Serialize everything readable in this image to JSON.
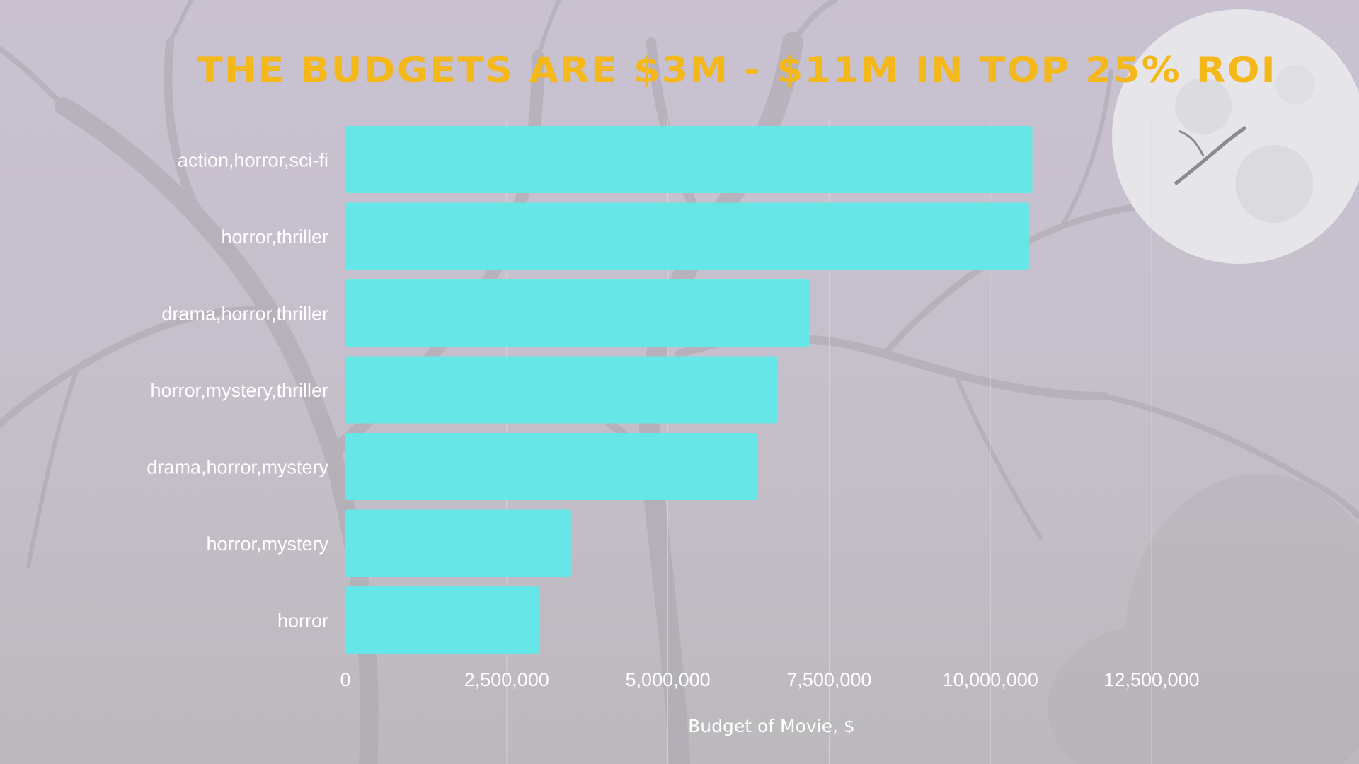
{
  "colors": {
    "bar": "#67e6e8",
    "title": "#f5b81b",
    "text": "#ffffff",
    "grid": "#dcd8e2"
  },
  "chart_data": {
    "type": "bar",
    "orientation": "horizontal",
    "title": "The Budgets are $3M - $11M in Top 25% ROI",
    "xlabel": "Budget of Movie, $",
    "ylabel": "",
    "categories": [
      "action,horror,sci-fi",
      "horror,thriller",
      "drama,horror,thriller",
      "horror,mystery,thriller",
      "drama,horror,mystery",
      "horror,mystery",
      "horror"
    ],
    "values": [
      10650000,
      10600000,
      7200000,
      6700000,
      6380000,
      3500000,
      3000000
    ],
    "xlim": [
      0,
      12500000
    ],
    "xticks": [
      0,
      2500000,
      5000000,
      7500000,
      10000000,
      12500000
    ],
    "xtick_labels": [
      "0",
      "2,500,000",
      "5,000,000",
      "7,500,000",
      "10,000,000",
      "12,500,000"
    ],
    "grid": "vertical",
    "legend": "none"
  }
}
